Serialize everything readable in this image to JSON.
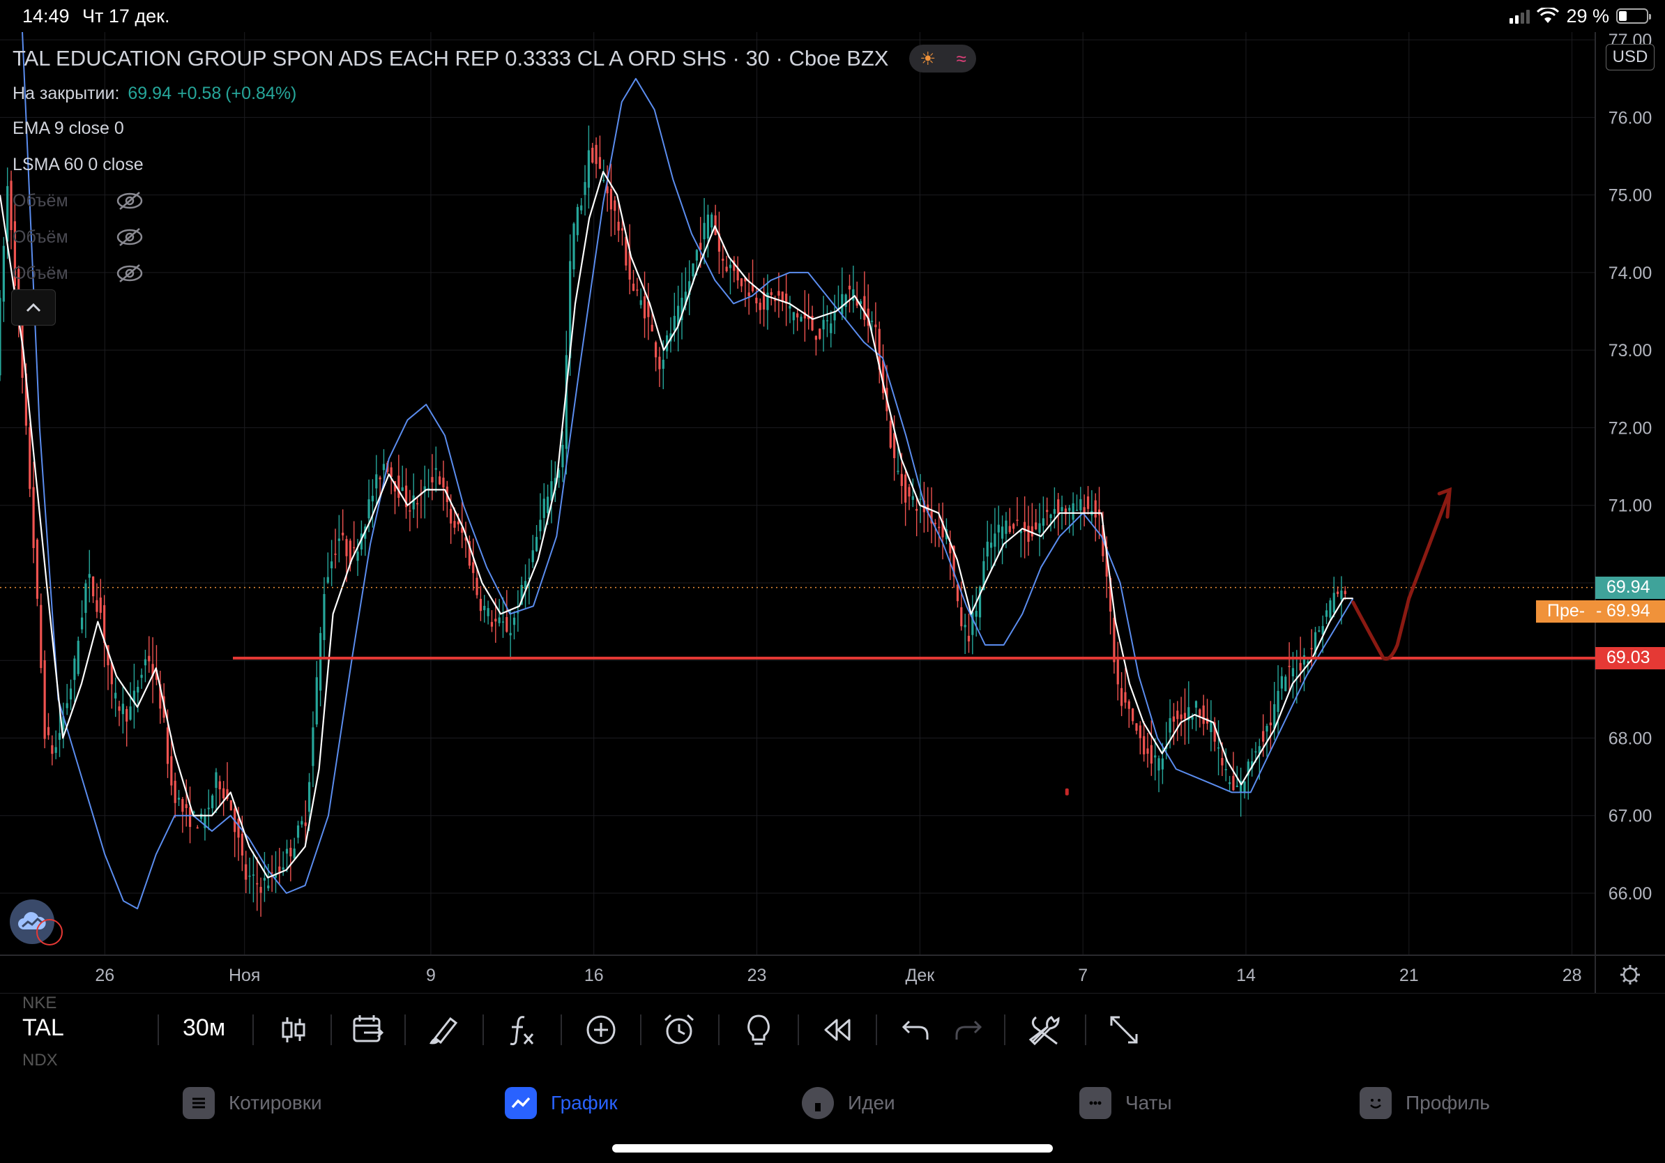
{
  "status_bar": {
    "time": "14:49",
    "date": "Чт 17 дек.",
    "battery": "29 %",
    "battery_level": 0.29
  },
  "legend": {
    "title": "TAL EDUCATION GROUP SPON ADS EACH REP 0.3333 CL A ORD SHS · 30 · Cboe BZX",
    "weather_icons": [
      "sun-icon",
      "wave-icon"
    ],
    "close_label": "На закрытии:",
    "close_price": "69.94",
    "close_change": "+0.58",
    "close_change_pct": "(+0.84%)",
    "ema": "EMA 9 close 0",
    "lsma": "LSMA 60 0 close",
    "volume_rows": [
      "Объём",
      "Объём",
      "Объём"
    ]
  },
  "currency": "USD",
  "chart_data": {
    "type": "candlestick",
    "instrument": "TAL",
    "interval": "30",
    "exchange": "Cboe BZX",
    "y_ticks": [
      "77.00",
      "76.00",
      "75.00",
      "74.00",
      "73.00",
      "72.00",
      "71.00",
      "70.00",
      "69.00",
      "68.00",
      "67.00",
      "66.00"
    ],
    "ylim": [
      65.2,
      77.1
    ],
    "x_ticks": [
      {
        "label": "26",
        "day": 0
      },
      {
        "label": "Ноя",
        "day": 6
      },
      {
        "label": "9",
        "day": 14
      },
      {
        "label": "16",
        "day": 21
      },
      {
        "label": "23",
        "day": 28
      },
      {
        "label": "Дек",
        "day": 35
      },
      {
        "label": "7",
        "day": 42
      },
      {
        "label": "14",
        "day": 49
      },
      {
        "label": "21",
        "day": 56
      },
      {
        "label": "28",
        "day": 63
      }
    ],
    "xlim": [
      -4.5,
      64
    ],
    "last_price": "69.94",
    "premarket_label": "Пре-",
    "premarket_price": "69.94",
    "horizontal_line": "69.03",
    "colors": {
      "up": "#26a69a",
      "down": "#ef5350",
      "ema": "#ffffff",
      "lsma": "#5b8def",
      "hline": "#e53935",
      "arrow": "#8b1a12",
      "last": "#3fa39a",
      "premarket": "#f0923a"
    },
    "price_path": [
      [
        -4.5,
        72.8
      ],
      [
        -4.0,
        75.2
      ],
      [
        -3.0,
        71.0
      ],
      [
        -2.4,
        68.0
      ],
      [
        -2.0,
        67.8
      ],
      [
        -1.2,
        68.8
      ],
      [
        -0.6,
        70.1
      ],
      [
        0,
        69.6
      ],
      [
        0.5,
        68.5
      ],
      [
        1.2,
        68.3
      ],
      [
        2.0,
        69.1
      ],
      [
        2.6,
        68.4
      ],
      [
        3.0,
        67.4
      ],
      [
        3.6,
        67.0
      ],
      [
        4.4,
        66.9
      ],
      [
        5.0,
        67.5
      ],
      [
        5.6,
        67.1
      ],
      [
        6.2,
        66.2
      ],
      [
        6.8,
        66.1
      ],
      [
        7.4,
        66.2
      ],
      [
        8.2,
        66.6
      ],
      [
        8.8,
        67.0
      ],
      [
        9.6,
        70.0
      ],
      [
        10.2,
        70.6
      ],
      [
        10.8,
        70.3
      ],
      [
        11.6,
        71.1
      ],
      [
        12.2,
        71.6
      ],
      [
        12.6,
        71.3
      ],
      [
        13.2,
        71.0
      ],
      [
        13.8,
        71.1
      ],
      [
        14.4,
        71.5
      ],
      [
        15.0,
        70.8
      ],
      [
        15.6,
        70.6
      ],
      [
        16.2,
        69.8
      ],
      [
        16.8,
        69.5
      ],
      [
        17.6,
        69.4
      ],
      [
        18.4,
        70.2
      ],
      [
        19.2,
        71.2
      ],
      [
        19.8,
        71.6
      ],
      [
        20.2,
        74.5
      ],
      [
        20.6,
        74.9
      ],
      [
        21.0,
        75.6
      ],
      [
        21.4,
        75.3
      ],
      [
        21.8,
        75.0
      ],
      [
        22.4,
        74.4
      ],
      [
        22.8,
        73.8
      ],
      [
        23.4,
        73.5
      ],
      [
        24.0,
        72.8
      ],
      [
        24.4,
        73.2
      ],
      [
        25.0,
        73.6
      ],
      [
        25.6,
        74.3
      ],
      [
        26.2,
        74.8
      ],
      [
        26.6,
        74.2
      ],
      [
        27.2,
        74.0
      ],
      [
        27.8,
        73.8
      ],
      [
        28.4,
        73.6
      ],
      [
        29.0,
        73.7
      ],
      [
        29.6,
        73.5
      ],
      [
        30.2,
        73.4
      ],
      [
        30.8,
        73.2
      ],
      [
        31.4,
        73.4
      ],
      [
        32.0,
        73.8
      ],
      [
        32.6,
        73.6
      ],
      [
        33.2,
        73.3
      ],
      [
        33.6,
        72.5
      ],
      [
        34.0,
        71.6
      ],
      [
        34.6,
        71.1
      ],
      [
        35.2,
        71.0
      ],
      [
        35.8,
        70.8
      ],
      [
        36.4,
        70.6
      ],
      [
        36.8,
        69.6
      ],
      [
        37.2,
        69.3
      ],
      [
        37.6,
        69.7
      ],
      [
        38.0,
        70.4
      ],
      [
        38.6,
        70.7
      ],
      [
        39.2,
        70.8
      ],
      [
        39.8,
        70.6
      ],
      [
        40.4,
        70.8
      ],
      [
        41.0,
        71.0
      ],
      [
        41.6,
        70.9
      ],
      [
        42.2,
        71.0
      ],
      [
        42.8,
        70.9
      ],
      [
        43.2,
        70.0
      ],
      [
        43.6,
        68.6
      ],
      [
        44.0,
        68.4
      ],
      [
        44.4,
        68.1
      ],
      [
        44.8,
        67.9
      ],
      [
        45.4,
        67.6
      ],
      [
        46.0,
        68.3
      ],
      [
        46.6,
        68.3
      ],
      [
        47.2,
        68.4
      ],
      [
        47.8,
        68.0
      ],
      [
        48.2,
        67.6
      ],
      [
        48.6,
        67.3
      ],
      [
        49.0,
        67.4
      ],
      [
        49.6,
        67.9
      ],
      [
        50.2,
        68.2
      ],
      [
        50.8,
        68.8
      ],
      [
        51.4,
        68.9
      ],
      [
        52.0,
        69.2
      ],
      [
        52.6,
        69.6
      ],
      [
        53.0,
        69.9
      ],
      [
        53.4,
        69.8
      ]
    ],
    "ema_path": [
      [
        -4.5,
        75.0
      ],
      [
        -3.5,
        73.0
      ],
      [
        -2.5,
        70.0
      ],
      [
        -1.8,
        68.0
      ],
      [
        -1.0,
        68.7
      ],
      [
        -0.3,
        69.5
      ],
      [
        0.5,
        68.8
      ],
      [
        1.4,
        68.4
      ],
      [
        2.2,
        68.9
      ],
      [
        3.0,
        67.8
      ],
      [
        3.8,
        67.0
      ],
      [
        4.6,
        67.0
      ],
      [
        5.4,
        67.3
      ],
      [
        6.2,
        66.6
      ],
      [
        7.0,
        66.2
      ],
      [
        7.8,
        66.3
      ],
      [
        8.6,
        66.6
      ],
      [
        9.2,
        67.6
      ],
      [
        9.8,
        69.6
      ],
      [
        10.6,
        70.3
      ],
      [
        11.4,
        70.8
      ],
      [
        12.2,
        71.4
      ],
      [
        13.0,
        71.0
      ],
      [
        13.8,
        71.2
      ],
      [
        14.6,
        71.2
      ],
      [
        15.4,
        70.7
      ],
      [
        16.2,
        70.0
      ],
      [
        17.0,
        69.6
      ],
      [
        17.8,
        69.7
      ],
      [
        18.6,
        70.3
      ],
      [
        19.4,
        71.3
      ],
      [
        20.2,
        73.6
      ],
      [
        20.8,
        74.7
      ],
      [
        21.4,
        75.3
      ],
      [
        22.0,
        75.0
      ],
      [
        22.6,
        74.2
      ],
      [
        23.4,
        73.6
      ],
      [
        24.0,
        73.0
      ],
      [
        24.6,
        73.3
      ],
      [
        25.4,
        74.0
      ],
      [
        26.2,
        74.6
      ],
      [
        26.8,
        74.2
      ],
      [
        27.6,
        73.9
      ],
      [
        28.4,
        73.7
      ],
      [
        29.4,
        73.6
      ],
      [
        30.4,
        73.4
      ],
      [
        31.4,
        73.5
      ],
      [
        32.2,
        73.7
      ],
      [
        32.8,
        73.4
      ],
      [
        33.4,
        72.6
      ],
      [
        34.2,
        71.6
      ],
      [
        35.0,
        71.0
      ],
      [
        35.8,
        70.9
      ],
      [
        36.6,
        70.3
      ],
      [
        37.2,
        69.6
      ],
      [
        37.8,
        70.0
      ],
      [
        38.6,
        70.5
      ],
      [
        39.4,
        70.7
      ],
      [
        40.2,
        70.6
      ],
      [
        41.0,
        70.9
      ],
      [
        42.0,
        70.9
      ],
      [
        42.8,
        70.9
      ],
      [
        43.4,
        69.5
      ],
      [
        44.0,
        68.7
      ],
      [
        44.6,
        68.2
      ],
      [
        45.4,
        67.8
      ],
      [
        46.2,
        68.2
      ],
      [
        46.8,
        68.3
      ],
      [
        47.6,
        68.2
      ],
      [
        48.2,
        67.7
      ],
      [
        48.8,
        67.4
      ],
      [
        49.4,
        67.7
      ],
      [
        50.2,
        68.1
      ],
      [
        51.0,
        68.7
      ],
      [
        51.8,
        69.0
      ],
      [
        52.6,
        69.5
      ],
      [
        53.2,
        69.8
      ],
      [
        53.6,
        69.8
      ]
    ],
    "lsma_path": [
      [
        -3.6,
        77.5
      ],
      [
        -2.8,
        72.0
      ],
      [
        -2.0,
        68.5
      ],
      [
        -1.0,
        67.5
      ],
      [
        0,
        66.5
      ],
      [
        0.8,
        65.9
      ],
      [
        1.4,
        65.8
      ],
      [
        2.2,
        66.5
      ],
      [
        3.0,
        67.0
      ],
      [
        3.8,
        67.0
      ],
      [
        4.6,
        66.8
      ],
      [
        5.4,
        67.0
      ],
      [
        6.2,
        66.7
      ],
      [
        7.0,
        66.3
      ],
      [
        7.8,
        66.0
      ],
      [
        8.6,
        66.1
      ],
      [
        9.6,
        67.0
      ],
      [
        10.6,
        69.0
      ],
      [
        11.4,
        70.5
      ],
      [
        12.2,
        71.6
      ],
      [
        13.0,
        72.1
      ],
      [
        13.8,
        72.3
      ],
      [
        14.6,
        71.9
      ],
      [
        15.4,
        71.0
      ],
      [
        16.4,
        70.2
      ],
      [
        17.4,
        69.6
      ],
      [
        18.4,
        69.7
      ],
      [
        19.4,
        70.6
      ],
      [
        20.4,
        72.8
      ],
      [
        21.4,
        74.9
      ],
      [
        22.2,
        76.2
      ],
      [
        22.8,
        76.5
      ],
      [
        23.6,
        76.1
      ],
      [
        24.4,
        75.2
      ],
      [
        25.2,
        74.5
      ],
      [
        26.2,
        73.9
      ],
      [
        27.0,
        73.6
      ],
      [
        27.8,
        73.7
      ],
      [
        28.6,
        73.9
      ],
      [
        29.4,
        74.0
      ],
      [
        30.2,
        74.0
      ],
      [
        31.0,
        73.7
      ],
      [
        31.8,
        73.4
      ],
      [
        32.6,
        73.1
      ],
      [
        33.4,
        72.9
      ],
      [
        34.4,
        71.9
      ],
      [
        35.2,
        71.0
      ],
      [
        36.0,
        70.5
      ],
      [
        37.0,
        69.7
      ],
      [
        37.8,
        69.2
      ],
      [
        38.6,
        69.2
      ],
      [
        39.4,
        69.6
      ],
      [
        40.2,
        70.2
      ],
      [
        41.0,
        70.6
      ],
      [
        42.0,
        70.9
      ],
      [
        42.8,
        70.6
      ],
      [
        43.6,
        70.0
      ],
      [
        44.4,
        68.8
      ],
      [
        45.2,
        68.0
      ],
      [
        46.0,
        67.6
      ],
      [
        46.8,
        67.5
      ],
      [
        47.6,
        67.4
      ],
      [
        48.4,
        67.3
      ],
      [
        49.2,
        67.3
      ],
      [
        50.0,
        67.8
      ],
      [
        50.8,
        68.3
      ],
      [
        51.6,
        68.8
      ],
      [
        52.4,
        69.2
      ],
      [
        53.2,
        69.6
      ],
      [
        53.6,
        69.8
      ]
    ]
  },
  "toolbar": {
    "prev_ticker": "NKE",
    "ticker": "TAL",
    "next_ticker": "NDX",
    "interval": "30м",
    "icons": [
      "candles-icon",
      "calendar-replay-icon",
      "brush-icon",
      "fx-indicators-icon",
      "add-circle-icon",
      "alarm-icon",
      "lightbulb-icon",
      "rewind-icon",
      "undo-icon",
      "redo-icon",
      "tools-icon",
      "fullscreen-icon"
    ]
  },
  "tabs": [
    {
      "label": "Котировки",
      "icon": "list-icon"
    },
    {
      "label": "График",
      "icon": "chart-icon",
      "active": true
    },
    {
      "label": "Идеи",
      "icon": "idea-icon"
    },
    {
      "label": "Чаты",
      "icon": "chat-icon"
    },
    {
      "label": "Профиль",
      "icon": "profile-icon"
    }
  ]
}
